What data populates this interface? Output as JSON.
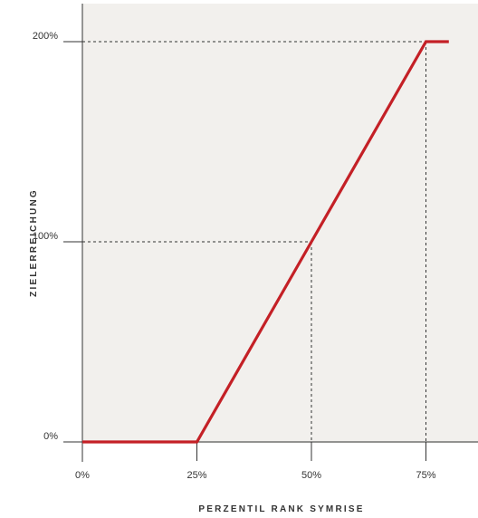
{
  "chart_data": {
    "type": "line",
    "xlabel": "PERZENTIL RANK SYMRISE",
    "ylabel": "ZIELERREICHUNG",
    "x_ticks": [
      "0%",
      "25%",
      "50%",
      "75%"
    ],
    "y_ticks": [
      "0%",
      "100%",
      "200%"
    ],
    "x_tick_values": [
      0,
      25,
      50,
      75
    ],
    "y_tick_values": [
      0,
      100,
      200
    ],
    "xlim": [
      0,
      80
    ],
    "ylim": [
      0,
      200
    ],
    "grid": false,
    "series": [
      {
        "x": [
          0,
          25,
          50,
          75,
          80
        ],
        "y": [
          0,
          0,
          100,
          200,
          200
        ],
        "color": "#c42026"
      }
    ],
    "reference_points": [
      {
        "x": 50,
        "y": 100
      },
      {
        "x": 75,
        "y": 200
      }
    ],
    "colors": {
      "plot_background": "#f2f0ed",
      "series_line": "#c42026",
      "axis": "#333333",
      "reference_lines": "#333333"
    }
  }
}
